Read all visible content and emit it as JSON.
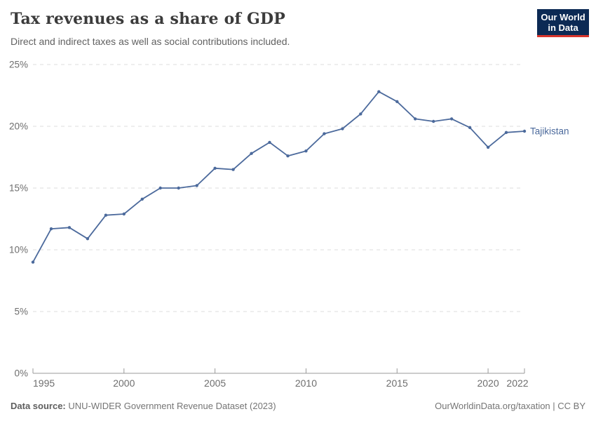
{
  "header": {
    "title": "Tax revenues as a share of GDP",
    "subtitle": "Direct and indirect taxes as well as social contributions included.",
    "logo": {
      "line1": "Our World",
      "line2": "in Data"
    }
  },
  "footer": {
    "source_label": "Data source:",
    "source_text": " UNU-WIDER Government Revenue Dataset (2023)",
    "right_text": "OurWorldinData.org/taxation | CC BY"
  },
  "colors": {
    "line": "#4c6a9c",
    "entity_label": "#4c6a9c",
    "grid": "#dcdcdc",
    "axis": "#999999",
    "tick_text": "#6e6e6e",
    "logo_bg": "#0c2a54",
    "logo_stripe": "#d8352c"
  },
  "chart_data": {
    "type": "line",
    "title": "Tax revenues as a share of GDP",
    "subtitle": "Direct and indirect taxes as well as social contributions included.",
    "xlabel": "",
    "ylabel": "",
    "xlim": [
      1995,
      2022
    ],
    "ylim": [
      0,
      25
    ],
    "grid": "horizontal-dashed",
    "legend_position": "end-of-line",
    "x_ticks": [
      1995,
      2000,
      2005,
      2010,
      2015,
      2020,
      2022
    ],
    "y_ticks": [
      0,
      5,
      10,
      15,
      20,
      25
    ],
    "y_tick_suffix": "%",
    "series": [
      {
        "name": "Tajikistan",
        "color": "#4c6a9c",
        "x": [
          1995,
          1996,
          1997,
          1998,
          1999,
          2000,
          2001,
          2002,
          2003,
          2004,
          2005,
          2006,
          2007,
          2008,
          2009,
          2010,
          2011,
          2012,
          2013,
          2014,
          2015,
          2016,
          2017,
          2018,
          2019,
          2020,
          2021,
          2022
        ],
        "values": [
          9.0,
          11.7,
          11.8,
          10.9,
          12.8,
          12.9,
          14.1,
          15.0,
          15.0,
          15.2,
          16.6,
          16.5,
          17.8,
          18.7,
          17.6,
          18.0,
          19.4,
          19.8,
          21.0,
          22.8,
          22.0,
          20.6,
          20.4,
          20.6,
          19.9,
          18.3,
          19.5,
          19.6
        ]
      }
    ]
  }
}
